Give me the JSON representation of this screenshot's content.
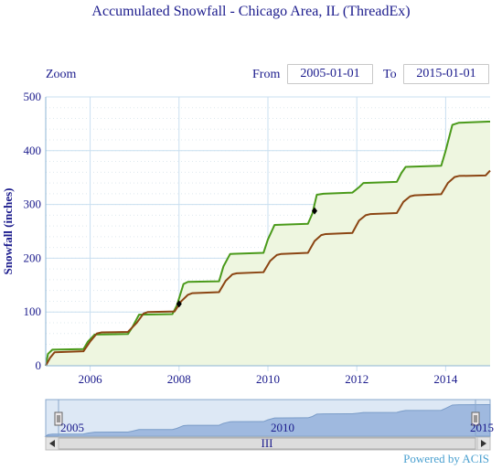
{
  "title": "Accumulated Snowfall - Chicago Area, IL (ThreadEx)",
  "toolbar": {
    "zoom_label": "Zoom",
    "from_label": "From",
    "from_value": "2005-01-01",
    "to_label": "To",
    "to_value": "2015-01-01"
  },
  "navigator": {
    "labels": [
      "2005",
      "2010",
      "2015"
    ],
    "scroll_glyph": "III"
  },
  "credit": "Powered by ACIS",
  "colors": {
    "series_green": "#4a9a1a",
    "series_brown": "#8b4513",
    "area_fill": "#eef6e0",
    "grid": "#c9dff0",
    "navigator_fill": "#9fb9df"
  },
  "chart_data": {
    "type": "line",
    "ylabel": "Snowfall (inches)",
    "xlabel": "",
    "xlim": [
      2005.0,
      2015.0
    ],
    "ylim": [
      0,
      500
    ],
    "x_ticks": [
      "2006",
      "2008",
      "2010",
      "2012",
      "2014"
    ],
    "y_ticks": [
      "0",
      "100",
      "200",
      "300",
      "400",
      "500"
    ],
    "series": [
      {
        "points": [
          [
            2005.0,
            0
          ],
          [
            2005.05,
            22
          ],
          [
            2005.15,
            30
          ],
          [
            2005.85,
            31
          ],
          [
            2005.95,
            45
          ],
          [
            2006.1,
            58
          ],
          [
            2006.85,
            59
          ],
          [
            2006.95,
            72
          ],
          [
            2007.1,
            95
          ],
          [
            2007.85,
            96
          ],
          [
            2007.95,
            112
          ],
          [
            2008.1,
            152
          ],
          [
            2008.2,
            156
          ],
          [
            2008.9,
            157
          ],
          [
            2009.0,
            185
          ],
          [
            2009.15,
            208
          ],
          [
            2009.9,
            210
          ],
          [
            2010.0,
            235
          ],
          [
            2010.15,
            262
          ],
          [
            2010.9,
            264
          ],
          [
            2011.0,
            283
          ],
          [
            2011.1,
            318
          ],
          [
            2011.25,
            320
          ],
          [
            2011.9,
            322
          ],
          [
            2012.05,
            332
          ],
          [
            2012.15,
            340
          ],
          [
            2012.9,
            342
          ],
          [
            2013.0,
            358
          ],
          [
            2013.1,
            370
          ],
          [
            2013.9,
            372
          ],
          [
            2014.0,
            400
          ],
          [
            2014.15,
            448
          ],
          [
            2014.3,
            452
          ],
          [
            2014.95,
            454
          ]
        ]
      },
      {
        "points": [
          [
            2005.0,
            0
          ],
          [
            2005.1,
            15
          ],
          [
            2005.2,
            25
          ],
          [
            2005.85,
            27
          ],
          [
            2006.0,
            45
          ],
          [
            2006.15,
            60
          ],
          [
            2006.25,
            62
          ],
          [
            2006.85,
            63
          ],
          [
            2007.05,
            80
          ],
          [
            2007.2,
            97
          ],
          [
            2007.3,
            100
          ],
          [
            2007.9,
            101
          ],
          [
            2008.05,
            120
          ],
          [
            2008.2,
            132
          ],
          [
            2008.3,
            135
          ],
          [
            2008.9,
            137
          ],
          [
            2009.05,
            158
          ],
          [
            2009.2,
            170
          ],
          [
            2009.3,
            172
          ],
          [
            2009.9,
            174
          ],
          [
            2010.05,
            195
          ],
          [
            2010.2,
            206
          ],
          [
            2010.3,
            208
          ],
          [
            2010.9,
            210
          ],
          [
            2011.05,
            232
          ],
          [
            2011.2,
            243
          ],
          [
            2011.3,
            245
          ],
          [
            2011.9,
            247
          ],
          [
            2012.05,
            270
          ],
          [
            2012.2,
            280
          ],
          [
            2012.3,
            282
          ],
          [
            2012.9,
            284
          ],
          [
            2013.05,
            305
          ],
          [
            2013.2,
            315
          ],
          [
            2013.3,
            317
          ],
          [
            2013.9,
            319
          ],
          [
            2014.05,
            340
          ],
          [
            2014.2,
            351
          ],
          [
            2014.3,
            353
          ],
          [
            2014.9,
            354
          ],
          [
            2015.0,
            363
          ]
        ]
      }
    ],
    "markers": [
      [
        2008.0,
        115
      ],
      [
        2011.05,
        288
      ]
    ],
    "grid": true,
    "legend": "none"
  }
}
